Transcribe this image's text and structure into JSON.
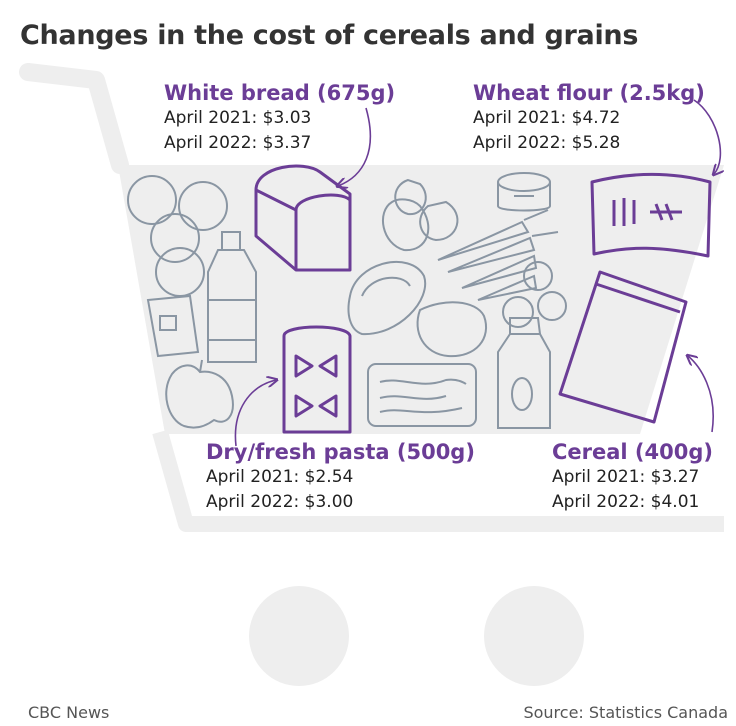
{
  "title": "Changes in the cost of cereals and grains",
  "footer": {
    "credit": "CBC News",
    "source": "Source: Statistics Canada"
  },
  "colors": {
    "accent_purple": "#6b3d96",
    "cart_gray": "#eeeeee",
    "icon_gray": "#8a96a3"
  },
  "items": [
    {
      "name": "White bread (675g)",
      "line1": "April 2021: $3.03",
      "line2": "April 2022: $3.37"
    },
    {
      "name": "Wheat flour (2.5kg)",
      "line1": "April 2021: $4.72",
      "line2": "April 2022: $5.28"
    },
    {
      "name": "Dry/fresh pasta (500g)",
      "line1": "April 2021: $2.54",
      "line2": "April 2022: $3.00"
    },
    {
      "name": "Cereal (400g)",
      "line1": "April 2021: $3.27",
      "line2": "April 2022: $4.01"
    }
  ],
  "chart_data": {
    "type": "table",
    "title": "Changes in the cost of cereals and grains",
    "columns": [
      "",
      "April 2021",
      "April 2022"
    ],
    "rows": [
      {
        "product": "White bread (675g)",
        "april_2021": 3.03,
        "april_2022": 3.37
      },
      {
        "product": "Wheat flour (2.5kg)",
        "april_2021": 4.72,
        "april_2022": 5.28
      },
      {
        "product": "Dry/fresh pasta (500g)",
        "april_2021": 2.54,
        "april_2022": 3.0
      },
      {
        "product": "Cereal (400g)",
        "april_2021": 3.27,
        "april_2022": 4.01
      }
    ],
    "unit": "$"
  }
}
